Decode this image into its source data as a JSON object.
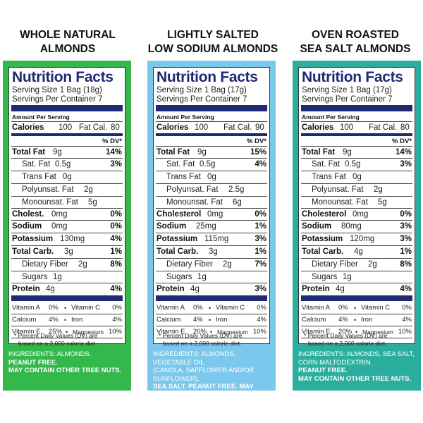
{
  "colors": {
    "panel_green": "#34b84c",
    "panel_blue": "#7cc8ec",
    "panel_teal": "#2bae9d",
    "label_blue": "#1e2b73"
  },
  "label_common": {
    "title": "Nutrition Facts",
    "amount_per_serving": "Amount Per Serving",
    "calories": "Calories",
    "fat_cal": "Fat Cal.",
    "dv_header": "% DV*",
    "total_fat": "Total Fat",
    "sat_fat": "Sat. Fat",
    "trans_fat": "Trans Fat",
    "poly_fat": "Polyunsat. Fat",
    "mono_fat": "Monounsat. Fat",
    "total_carb": "Total Carb.",
    "fiber": "Dietary Fiber",
    "sugars": "Sugars",
    "protein": "Protein",
    "potassium": "Potassium",
    "sodium": "Sodium",
    "vitamin_a": "Vitamin A",
    "vitamin_c": "Vitamin C",
    "calcium": "Calcium",
    "iron": "Iron",
    "vitamin_e": "Vitamin E",
    "magnesium": "Magnesium",
    "footnote_1": "* Percent Daily Values (DV) are",
    "footnote_2": "based on a 2,000 calorie diet."
  },
  "products": [
    {
      "title_line1": "WHOLE NATURAL",
      "title_line2": "ALMONDS",
      "serving_size": "Serving Size 1 Bag (18g)",
      "servings_per": "Servings Per Container 7",
      "calories": "100",
      "fat_cal": "80",
      "total_fat": "9g",
      "total_fat_dv": "14%",
      "sat_fat": "0.5g",
      "sat_fat_dv": "3%",
      "trans_fat": "0g",
      "poly_fat": "2g",
      "mono_fat": "5g",
      "chol_label": "Cholest.",
      "chol": "0mg",
      "chol_dv": "0%",
      "sodium": "0mg",
      "sodium_dv": "0%",
      "potassium": "130mg",
      "potassium_dv": "4%",
      "total_carb": "3g",
      "total_carb_dv": "1%",
      "fiber": "2g",
      "fiber_dv": "8%",
      "sugars": "1g",
      "protein": "4g",
      "protein_dv": "4%",
      "vit_a": "0%",
      "vit_c": "0%",
      "calcium": "4%",
      "iron": "4%",
      "vit_e": "25%",
      "magnesium": "10%",
      "ingr_line1": "INGREDIENTS: ALMONDS.",
      "ingr_line2": "PEANUT FREE.",
      "ingr_line3": "MAY CONTAIN OTHER TREE NUTS.",
      "ingr_line4": ""
    },
    {
      "title_line1": "LIGHTLY SALTED",
      "title_line2": "LOW SODIUM ALMONDS",
      "serving_size": "Serving Size 1 Bag (17g)",
      "servings_per": "Servings Per Container 7",
      "calories": "100",
      "fat_cal": "90",
      "total_fat": "9g",
      "total_fat_dv": "15%",
      "sat_fat": "0.5g",
      "sat_fat_dv": "4%",
      "trans_fat": "0g",
      "poly_fat": "2.5g",
      "mono_fat": "6g",
      "chol_label": "Cholesterol",
      "chol": "0mg",
      "chol_dv": "0%",
      "sodium": "25mg",
      "sodium_dv": "1%",
      "potassium": "115mg",
      "potassium_dv": "3%",
      "total_carb": "3g",
      "total_carb_dv": "1%",
      "fiber": "2g",
      "fiber_dv": "7%",
      "sugars": "1g",
      "protein": "4g",
      "protein_dv": "3%",
      "vit_a": "0%",
      "vit_c": "0%",
      "calcium": "4%",
      "iron": "4%",
      "vit_e": "20%",
      "magnesium": "10%",
      "ingr_line1": "INGREDIENTS: ALMONDS, VEGETABLE OIL",
      "ingr_line2": "(CANOLA, SAFFLOWER AND/OR SUNFLOWER),",
      "ingr_line3": "SEA SALT. PEANUT FREE. MAY CONTAIN OTHER",
      "ingr_line4": "TREE NUTS."
    },
    {
      "title_line1": "OVEN ROASTED",
      "title_line2": "SEA SALT ALMONDS",
      "serving_size": "Serving Size 1 Bag (17g)",
      "servings_per": "Servings Per Container 7",
      "calories": "100",
      "fat_cal": "80",
      "total_fat": "9g",
      "total_fat_dv": "14%",
      "sat_fat": "0.5g",
      "sat_fat_dv": "3%",
      "trans_fat": "0g",
      "poly_fat": "2g",
      "mono_fat": "5g",
      "chol_label": "Cholesterol",
      "chol": "0mg",
      "chol_dv": "0%",
      "sodium": "80mg",
      "sodium_dv": "3%",
      "potassium": "120mg",
      "potassium_dv": "3%",
      "total_carb": "4g",
      "total_carb_dv": "1%",
      "fiber": "2g",
      "fiber_dv": "8%",
      "sugars": "1g",
      "protein": "4g",
      "protein_dv": "4%",
      "vit_a": "0%",
      "vit_c": "0%",
      "calcium": "4%",
      "iron": "4%",
      "vit_e": "20%",
      "magnesium": "10%",
      "ingr_line1": "INGREDIENTS: ALMONDS, SEA SALT,",
      "ingr_line2": "CORN MALTODEXTRIN.",
      "ingr_line3": "PEANUT FREE.",
      "ingr_line4": "MAY CONTAIN OTHER TREE NUTS."
    }
  ]
}
